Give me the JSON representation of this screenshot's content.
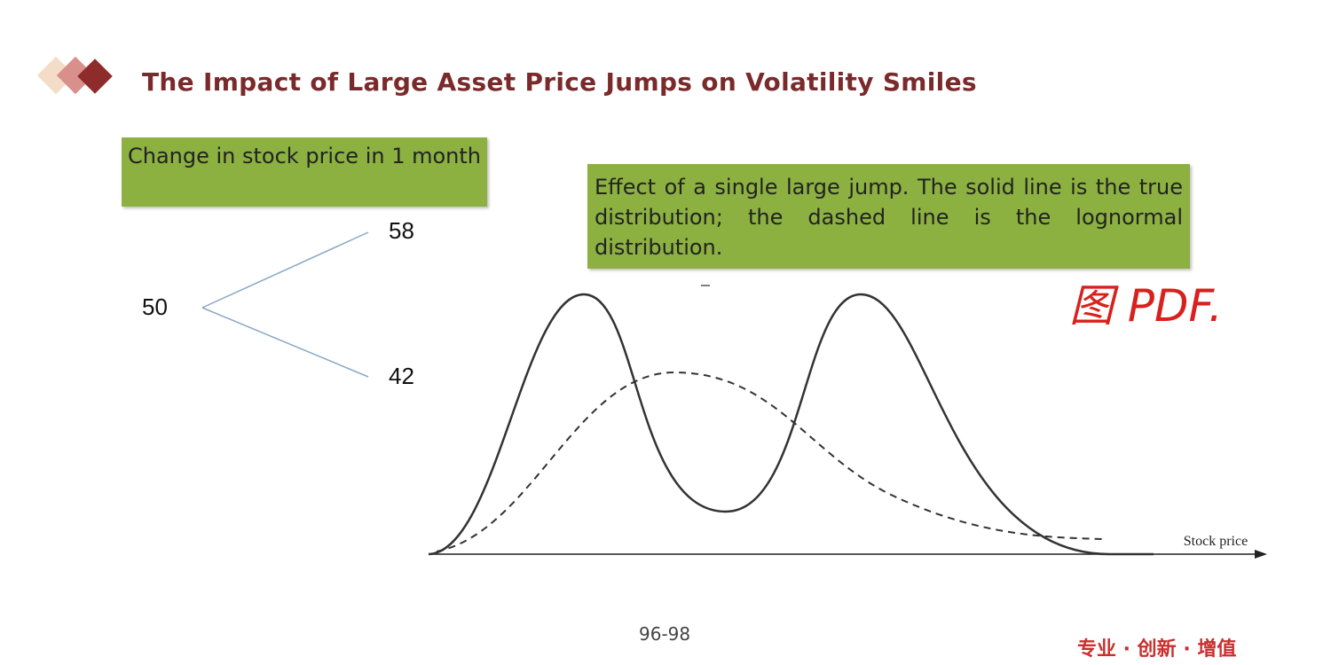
{
  "header": {
    "title": "The Impact of Large Asset Price Jumps on Volatility Smiles"
  },
  "left_box": {
    "text": "Change in stock price in 1 month"
  },
  "tree": {
    "root": "50",
    "up": "58",
    "down": "42"
  },
  "right_box": {
    "text": "Effect of a single large jump. The solid line is the true distribution; the dashed line is the lognormal distribution."
  },
  "figure": {
    "x_axis_label": "Stock price"
  },
  "annotation": {
    "handwriting": "图 PDF."
  },
  "footer": {
    "page": "96-98",
    "slogan": "专业 · 创新 · 增值"
  }
}
